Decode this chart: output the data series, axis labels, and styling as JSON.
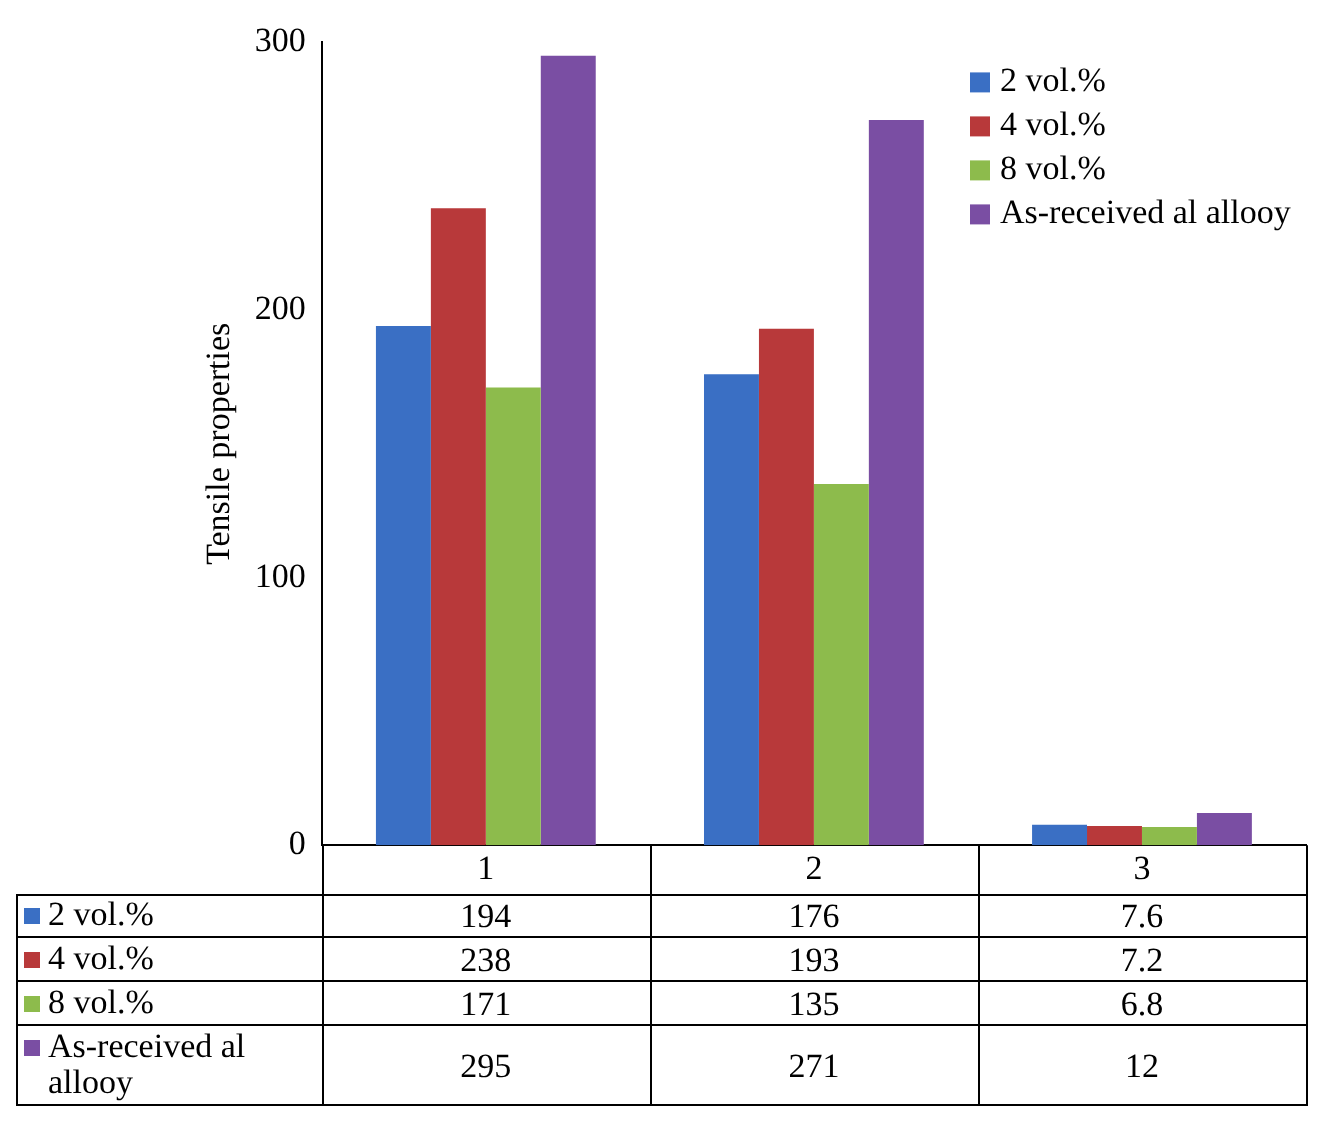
{
  "chart_data": {
    "type": "bar",
    "ylabel": "Tensile properties",
    "categories": [
      "1",
      "2",
      "3"
    ],
    "series": [
      {
        "name": "2 vol.%",
        "color": "#3a6fc4",
        "values": [
          194,
          176,
          7.6
        ]
      },
      {
        "name": "4 vol.%",
        "color": "#b8393a",
        "values": [
          238,
          193,
          7.2
        ]
      },
      {
        "name": "8 vol.%",
        "color": "#8dbb4c",
        "values": [
          171,
          135,
          6.8
        ]
      },
      {
        "name": "As-received al allooy",
        "color": "#7a4ea3",
        "values": [
          295,
          271,
          12
        ]
      }
    ],
    "ylim": [
      0,
      300
    ],
    "yticks": [
      0,
      100,
      200,
      300
    ],
    "grid": false,
    "legend": "top right",
    "data_labels": true
  }
}
